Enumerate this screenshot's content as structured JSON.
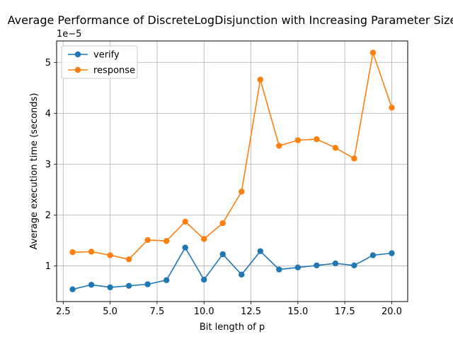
{
  "chart_data": {
    "type": "line",
    "title": "Average Performance of DiscreteLogDisjunction with Increasing Parameter Size",
    "xlabel": "Bit length of p",
    "ylabel": "Average execution time (seconds)",
    "y_offset_label": "1e−5",
    "x": [
      3,
      4,
      5,
      6,
      7,
      8,
      9,
      10,
      11,
      12,
      13,
      14,
      15,
      16,
      17,
      18,
      19,
      20
    ],
    "xlim": [
      2.15,
      20.85
    ],
    "ylim": [
      0.3,
      5.42
    ],
    "x_ticks": [
      2.5,
      5.0,
      7.5,
      10.0,
      12.5,
      15.0,
      17.5,
      20.0
    ],
    "x_tick_labels": [
      "2.5",
      "5.0",
      "7.5",
      "10.0",
      "12.5",
      "15.0",
      "17.5",
      "20.0"
    ],
    "y_ticks": [
      1,
      2,
      3,
      4,
      5
    ],
    "y_tick_labels": [
      "1",
      "2",
      "3",
      "4",
      "5"
    ],
    "grid": true,
    "legend_position": "top-left",
    "series": [
      {
        "name": "verify",
        "color": "#1f77b4",
        "values": [
          0.54,
          0.63,
          0.58,
          0.61,
          0.64,
          0.72,
          1.36,
          0.73,
          1.23,
          0.83,
          1.29,
          0.93,
          0.97,
          1.01,
          1.05,
          1.01,
          1.21,
          1.25
        ]
      },
      {
        "name": "response",
        "color": "#ff7f0e",
        "values": [
          1.27,
          1.28,
          1.21,
          1.13,
          1.51,
          1.49,
          1.87,
          1.53,
          1.84,
          2.46,
          4.66,
          3.36,
          3.47,
          3.49,
          3.32,
          3.11,
          5.19,
          4.11
        ]
      }
    ]
  }
}
